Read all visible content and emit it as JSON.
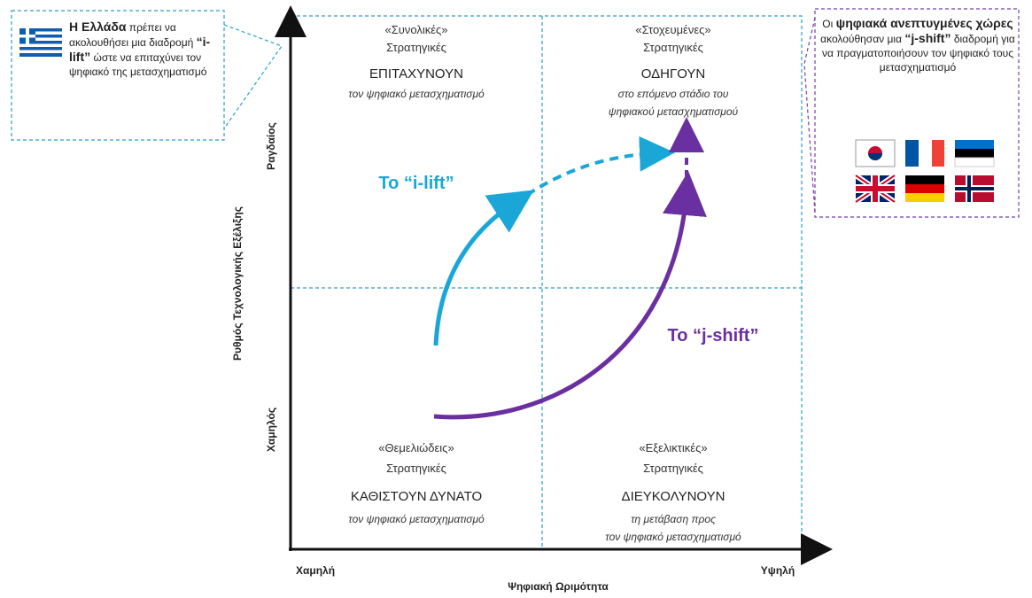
{
  "axes": {
    "y_label": "Ρυθμός Τεχνολογικής Εξέλιξης",
    "y_high": "Ραγδαίος",
    "y_low": "Χαμηλός",
    "x_label": "Ψηφιακή Ωριμότητα",
    "x_low": "Χαμηλή",
    "x_high": "Υψηλή"
  },
  "quadrants": [
    {
      "tag": "«Συνολικές»",
      "subtitle": "Στρατηγικές",
      "verb": "ΕΠΙΤΑΧΥΝΟΥΝ",
      "desc": [
        "τον ψηφιακό μετασχηματισμό"
      ]
    },
    {
      "tag": "«Στοχευμένες»",
      "subtitle": "Στρατηγικές",
      "verb": "ΟΔΗΓΟΥΝ",
      "desc": [
        "στο επόμενο στάδιο του",
        "ψηφιακού μετασχηματισμού"
      ]
    },
    {
      "tag": "«Θεμελιώδεις»",
      "subtitle": "Στρατηγικές",
      "verb": "ΚΑΘΙΣΤΟΥΝ ΔΥΝΑΤΟ",
      "desc": [
        "τον ψηφιακό μετασχηματισμό"
      ]
    },
    {
      "tag": "«Εξελικτικές»",
      "subtitle": "Στρατηγικές",
      "verb": "ΔΙΕΥΚΟΛΥΝΟΥΝ",
      "desc": [
        "τη μετάβαση προς",
        "τον ψηφιακό μετασχηματισμό"
      ]
    }
  ],
  "paths": [
    {
      "label": "Το “i-lift”"
    },
    {
      "label": "Το “j-shift”"
    }
  ],
  "greece_box": [
    "Η Ελλάδα",
    "πρέπει να ακολουθήσει μια διαδρομή",
    "“i-lift”",
    "ώστε να επιταχύνει τον ψηφιακό της μετασχηματισμό"
  ],
  "leaders_box": [
    "Οι",
    "ψηφιακά ανεπτυγμένες χώρες",
    "ακολούθησαν μια",
    "“j-shift”",
    "διαδρομή για να πραγματοποιήσουν τον ψηφιακό τους μετασχηματισμό"
  ]
}
